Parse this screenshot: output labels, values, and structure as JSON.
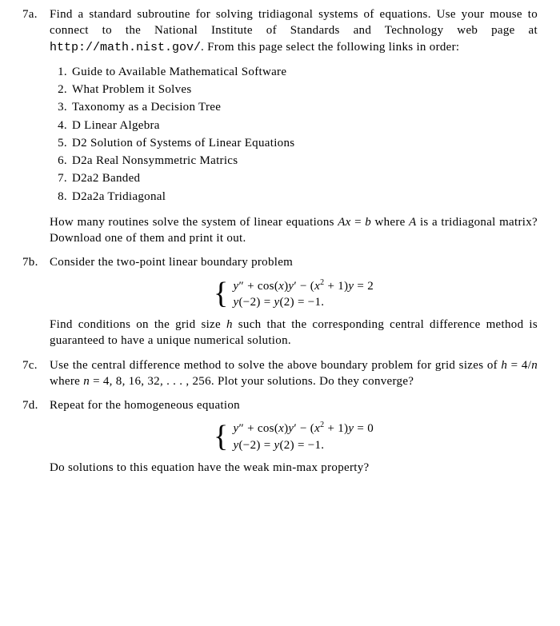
{
  "problems": {
    "p7a": {
      "label": "7a.",
      "para1_pre": "Find a standard subroutine for solving tridiagonal systems of equations. Use your mouse to connect to the National Institute of Standards and Technology web page at ",
      "url": "http://math.nist.gov/",
      "para1_post": ". From this page select the following links in order:",
      "links": [
        "Guide to Available Mathematical Software",
        "What Problem it Solves",
        "Taxonomy as a Decision Tree",
        "D Linear Algebra",
        "D2 Solution of Systems of Linear Equations",
        "D2a Real Nonsymmetric Matrics",
        "D2a2 Banded",
        "D2a2a Tridiagonal"
      ],
      "para2_pre": "How many routines solve the system of linear equations ",
      "para2_eq_lhs": "Ax",
      "para2_eq_eq": " = ",
      "para2_eq_rhs": "b",
      "para2_mid": " where ",
      "para2_A": "A",
      "para2_post": " is a tridiagonal matrix? Download one of them and print it out."
    },
    "p7b": {
      "label": "7b.",
      "para1": "Consider the two-point linear boundary problem",
      "eq_line1": "y″ + cos(x)y′ − (x² + 1)y = 2",
      "eq_line2": "y(−2) = y(2) = −1.",
      "para2_pre": "Find conditions on the grid size ",
      "para2_h": "h",
      "para2_post": " such that the corresponding central difference method is guaranteed to have a unique numerical solution."
    },
    "p7c": {
      "label": "7c.",
      "para_pre": "Use the central difference method to solve the above boundary problem for grid sizes of ",
      "para_h": "h",
      "para_eq": " = 4/",
      "para_n": "n",
      "para_mid": " where ",
      "para_n2": "n",
      "para_vals": " = 4, 8, 16, 32, . . . , 256. Plot your solutions. Do they converge?"
    },
    "p7d": {
      "label": "7d.",
      "para1": "Repeat for the homogeneous equation",
      "eq_line1": "y″ + cos(x)y′ − (x² + 1)y = 0",
      "eq_line2": "y(−2) = y(2) = −1.",
      "para2": "Do solutions to this equation have the weak min-max property?"
    }
  }
}
